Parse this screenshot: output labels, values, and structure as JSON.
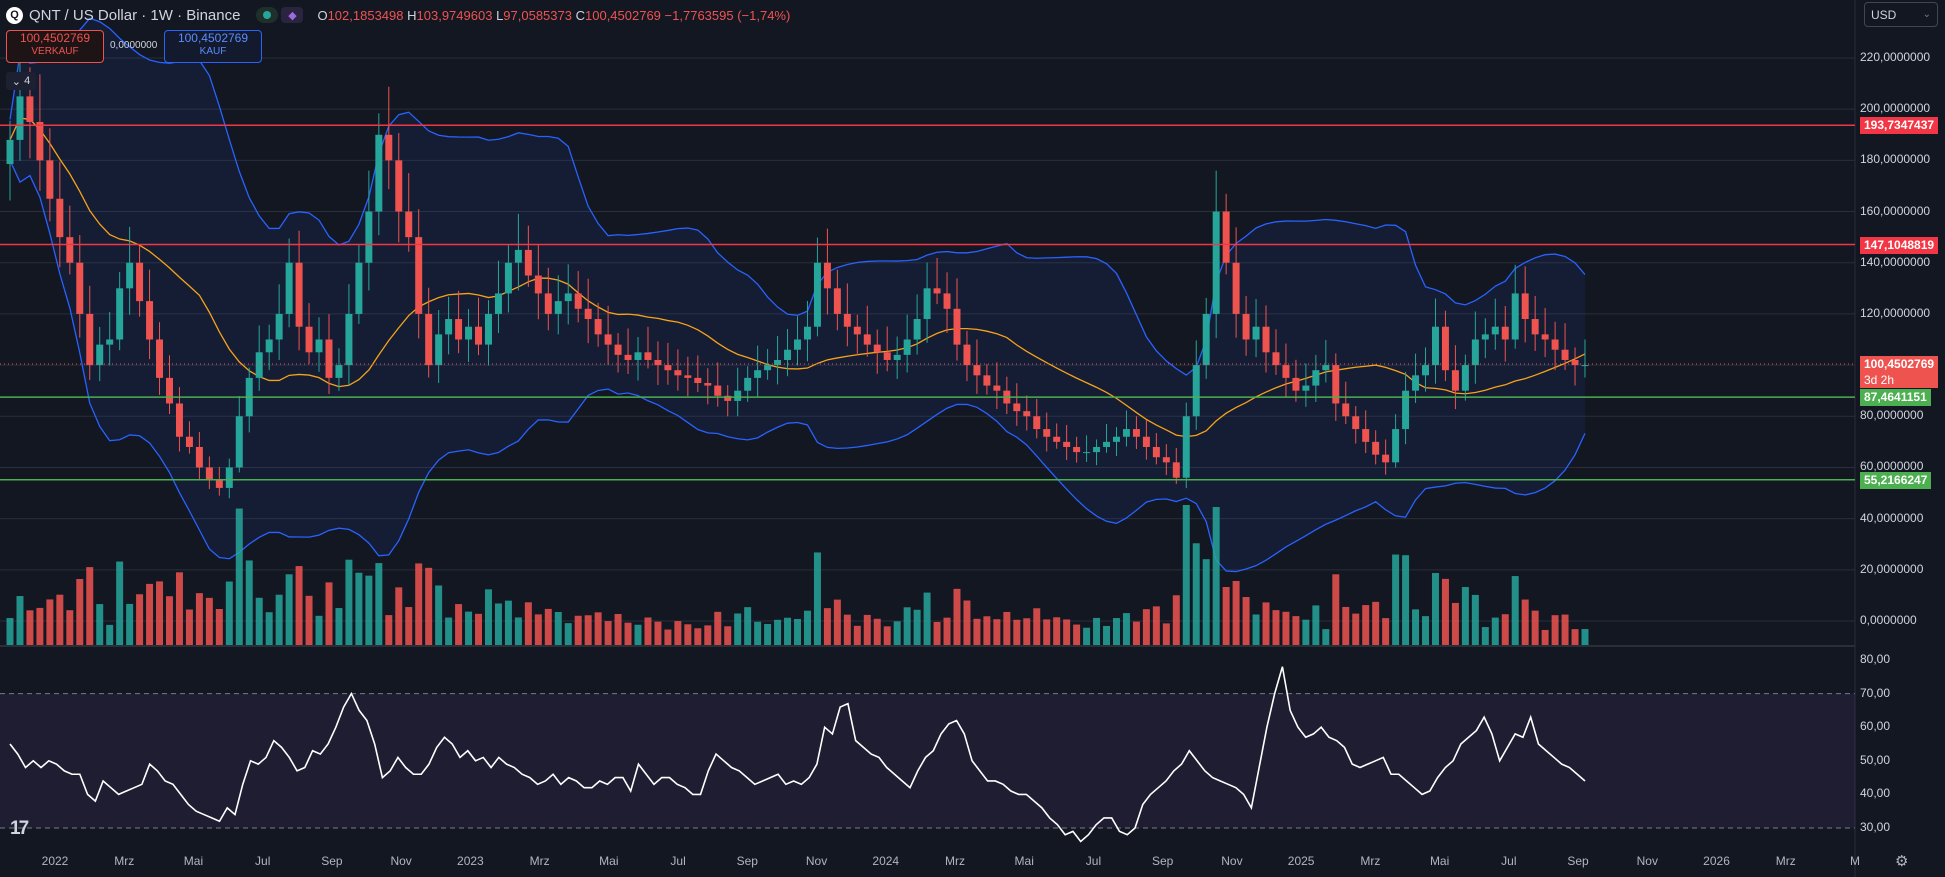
{
  "header": {
    "logo_text": "Q",
    "title": "QNT / US Dollar · 1W · Binance",
    "ohlc": [
      {
        "k": "O",
        "v": "102,1853498"
      },
      {
        "k": "H",
        "v": "103,9749603"
      },
      {
        "k": "L",
        "v": "97,0585373"
      },
      {
        "k": "C",
        "v": "100,4502769"
      },
      {
        "k": "",
        "v": "−1,7763595 (−1,74%)"
      }
    ]
  },
  "trade": {
    "sell_price": "100,4502769",
    "sell_label": "VERKAUF",
    "spread": "0,0000000",
    "buy_price": "100,4502769",
    "buy_label": "KAUF"
  },
  "collapse_label": "4",
  "currency": "USD",
  "colors": {
    "up": "#26a69a",
    "down": "#ef5350",
    "bb": "#2962ff",
    "ma": "#f7a21b",
    "bg": "#131722",
    "grid": "#2a2e39",
    "resistance": "#f23645",
    "support": "#4caf50"
  },
  "chart_data": [
    {
      "type": "candlestick",
      "title": "QNT / US Dollar · 1W · Binance",
      "ylim": [
        -10,
        233
      ],
      "y_ticks": [
        0,
        20,
        40,
        60,
        80,
        100,
        120,
        140,
        160,
        180,
        200,
        220
      ],
      "y_tick_labels": [
        "0,0000000",
        "20,0000000",
        "40,0000000",
        "60,0000000",
        "80,0000000",
        "100,0000000",
        "120,0000000",
        "140,0000000",
        "160,0000000",
        "180,0000000",
        "200,0000000",
        "220,0000000"
      ],
      "x_labels": [
        "2022",
        "Mrz",
        "Mai",
        "Jul",
        "Sep",
        "Nov",
        "2023",
        "Mrz",
        "Mai",
        "Jul",
        "Sep",
        "Nov",
        "2024",
        "Mrz",
        "Mai",
        "Jul",
        "Sep",
        "Nov",
        "2025",
        "Mrz",
        "Mai",
        "Jul",
        "Sep",
        "Nov",
        "2026",
        "Mrz",
        "M"
      ],
      "close": [
        188,
        205,
        195,
        180,
        165,
        150,
        140,
        120,
        100,
        108,
        110,
        130,
        140,
        125,
        110,
        95,
        85,
        72,
        68,
        60,
        55,
        52,
        60,
        80,
        95,
        105,
        110,
        120,
        140,
        115,
        105,
        110,
        95,
        100,
        120,
        140,
        160,
        190,
        180,
        160,
        150,
        120,
        100,
        112,
        118,
        110,
        115,
        108,
        120,
        128,
        140,
        145,
        135,
        128,
        120,
        125,
        128,
        122,
        118,
        112,
        108,
        104,
        102,
        105,
        102,
        100,
        98,
        96,
        95,
        93,
        92,
        88,
        86,
        90,
        95,
        98,
        100,
        102,
        106,
        110,
        115,
        140,
        130,
        120,
        115,
        112,
        108,
        105,
        102,
        104,
        110,
        118,
        130,
        128,
        122,
        108,
        100,
        96,
        92,
        90,
        85,
        82,
        80,
        75,
        72,
        70,
        68,
        66,
        66,
        68,
        70,
        72,
        75,
        72,
        68,
        64,
        62,
        56,
        80,
        100,
        120,
        160,
        140,
        120,
        110,
        115,
        105,
        100,
        95,
        90,
        92,
        98,
        100,
        85,
        80,
        75,
        70,
        65,
        62,
        75,
        90,
        96,
        100,
        115,
        98,
        90,
        100,
        110,
        112,
        115,
        110,
        128,
        118,
        112,
        110,
        106,
        102,
        100,
        100
      ],
      "current_price": "100,4502769",
      "countdown": "3d 2h",
      "levels": [
        {
          "value": 193.7347437,
          "label": "193,7347437",
          "kind": "resistance"
        },
        {
          "value": 147.1048819,
          "label": "147,1048819",
          "kind": "resistance"
        },
        {
          "value": 87.4641151,
          "label": "87,4641151",
          "kind": "support"
        },
        {
          "value": 55.2166247,
          "label": "55,2166247",
          "kind": "support"
        }
      ]
    },
    {
      "type": "line",
      "title": "",
      "ylim": [
        25,
        82
      ],
      "y_ticks": [
        30,
        40,
        50,
        60,
        70,
        80
      ],
      "y_tick_labels": [
        "30,00",
        "40,00",
        "50,00",
        "60,00",
        "70,00",
        "80,00"
      ],
      "band": [
        30,
        70
      ],
      "values": [
        55,
        52,
        48,
        50,
        48,
        50,
        49,
        47,
        46,
        46,
        40,
        38,
        44,
        42,
        40,
        41,
        42,
        43,
        49,
        47,
        44,
        43,
        40,
        37,
        35,
        34,
        33,
        32,
        36,
        34,
        43,
        50,
        49,
        51,
        56,
        54,
        51,
        47,
        48,
        53,
        52,
        55,
        60,
        66,
        70,
        65,
        62,
        55,
        45,
        47,
        51,
        48,
        46,
        46,
        49,
        54,
        57,
        55,
        51,
        53,
        50,
        51,
        48,
        51,
        49,
        48,
        46,
        45,
        43,
        44,
        46,
        43,
        45,
        44,
        42,
        42,
        44,
        43,
        45,
        45,
        41,
        49,
        46,
        43,
        45,
        45,
        43,
        42,
        40,
        40,
        47,
        52,
        50,
        48,
        47,
        45,
        43,
        44,
        45,
        46,
        43,
        44,
        43,
        45,
        49,
        60,
        58,
        66,
        67,
        56,
        54,
        52,
        51,
        48,
        46,
        44,
        42,
        47,
        51,
        53,
        58,
        61,
        62,
        58,
        50,
        47,
        44,
        44,
        43,
        41,
        40,
        40,
        38,
        36,
        33,
        31,
        28,
        29,
        26,
        28,
        31,
        33,
        33,
        29,
        28,
        30,
        37,
        40,
        42,
        44,
        47,
        49,
        53,
        50,
        47,
        45,
        44,
        43,
        42,
        40,
        36,
        48,
        60,
        70,
        78,
        65,
        60,
        57,
        58,
        60,
        57,
        56,
        54,
        49,
        48,
        49,
        50,
        51,
        46,
        46,
        44,
        42,
        40,
        41,
        45,
        48,
        50,
        55,
        57,
        59,
        63,
        58,
        50,
        54,
        58,
        57,
        63,
        55,
        53,
        51,
        49,
        48,
        46,
        44
      ],
      "x_labels": [
        "2022",
        "Mrz",
        "Mai",
        "Jul",
        "Sep",
        "Nov",
        "2023",
        "Mrz",
        "Mai",
        "Jul",
        "Sep",
        "Nov",
        "2024",
        "Mrz",
        "Mai",
        "Jul",
        "Sep",
        "Nov",
        "2025",
        "Mrz",
        "Mai",
        "Jul",
        "Sep",
        "Nov",
        "2026",
        "Mrz",
        "M"
      ]
    }
  ]
}
